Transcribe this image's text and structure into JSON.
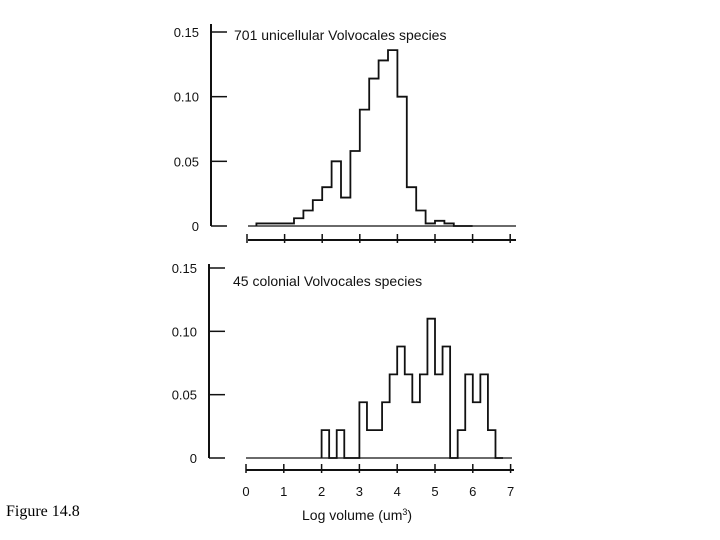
{
  "caption": "Figure 14.8",
  "chart_data": [
    {
      "type": "bar",
      "title": "701 unicellular Volvocales species",
      "xlabel": "",
      "ylabel": "",
      "xlim": [
        0,
        7
      ],
      "ylim": [
        0,
        0.15
      ],
      "yticks": [
        "0",
        "0.05",
        "0.10",
        "0.15"
      ],
      "bin_width": 0.25,
      "bins_start": [
        0.25,
        0.5,
        0.75,
        1.0,
        1.25,
        1.5,
        1.75,
        2.0,
        2.25,
        2.5,
        2.75,
        3.0,
        3.25,
        3.5,
        3.75,
        4.0,
        4.25,
        4.5,
        4.75,
        5.0,
        5.25,
        5.5,
        5.75
      ],
      "values": [
        0.002,
        0.002,
        0.002,
        0.002,
        0.006,
        0.012,
        0.02,
        0.03,
        0.05,
        0.022,
        0.058,
        0.09,
        0.114,
        0.128,
        0.136,
        0.1,
        0.03,
        0.012,
        0.002,
        0.004,
        0.002,
        0,
        0
      ]
    },
    {
      "type": "bar",
      "title": "45 colonial Volvocales species",
      "xlabel": "Log volume (um3)",
      "ylabel": "",
      "xlim": [
        0,
        7
      ],
      "ylim": [
        0,
        0.15
      ],
      "xticks": [
        "0",
        "1",
        "2",
        "3",
        "4",
        "5",
        "6",
        "7"
      ],
      "yticks": [
        "0",
        "0.05",
        "0.10",
        "0.15"
      ],
      "bin_width": 0.2,
      "bins_start": [
        2.0,
        2.2,
        2.4,
        2.6,
        2.8,
        3.0,
        3.2,
        3.4,
        3.6,
        3.8,
        4.0,
        4.2,
        4.4,
        4.6,
        4.8,
        5.0,
        5.2,
        5.4,
        5.6,
        5.8,
        6.0,
        6.2,
        6.4,
        6.6
      ],
      "values": [
        0.022,
        0,
        0.022,
        0,
        0,
        0.044,
        0.022,
        0.022,
        0.044,
        0.066,
        0.088,
        0.066,
        0.044,
        0.066,
        0.11,
        0.066,
        0.088,
        0,
        0.022,
        0.066,
        0.044,
        0.066,
        0.022,
        0
      ]
    }
  ]
}
